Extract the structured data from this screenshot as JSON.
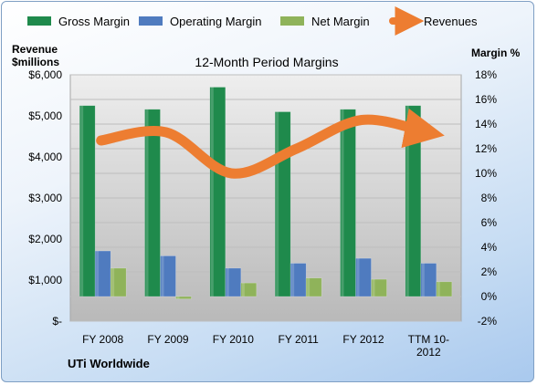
{
  "chart_data": {
    "type": "bar",
    "title": "12-Month Period Margins",
    "company": "UTi Worldwide",
    "ylabel_left": [
      "Revenue",
      "$millions"
    ],
    "ylabel_right": "Margin %",
    "categories": [
      [
        "FY 2008"
      ],
      [
        "FY 2009"
      ],
      [
        "FY 2010"
      ],
      [
        "FY 2011"
      ],
      [
        "FY 2012"
      ],
      [
        "TTM 10-",
        "2012"
      ]
    ],
    "y_left_ticks": [
      "$-",
      "$1,000",
      "$2,000",
      "$3,000",
      "$4,000",
      "$5,000",
      "$6,000"
    ],
    "y_left_range": [
      0,
      6000
    ],
    "y_right_ticks": [
      "-2%",
      "0%",
      "2%",
      "4%",
      "6%",
      "8%",
      "10%",
      "12%",
      "14%",
      "16%",
      "18%"
    ],
    "y_right_range": [
      -2,
      18
    ],
    "grid": "horizontal",
    "legend_position": "top",
    "series": [
      {
        "name": "Gross Margin",
        "axis": "right",
        "type": "bar",
        "color": "#1f8a4c",
        "values": [
          15.5,
          15.2,
          17.0,
          15.0,
          15.2,
          15.5
        ]
      },
      {
        "name": "Operating Margin",
        "axis": "right",
        "type": "bar",
        "color": "#4f7bbf",
        "values": [
          3.7,
          3.3,
          2.3,
          2.7,
          3.1,
          2.7
        ]
      },
      {
        "name": "Net Margin",
        "axis": "right",
        "type": "bar",
        "color": "#8fb35a",
        "values": [
          2.3,
          -0.2,
          1.1,
          1.5,
          1.4,
          1.2
        ]
      },
      {
        "name": "Revenues",
        "axis": "left",
        "type": "line",
        "color": "#ed7d31",
        "values": [
          4400,
          4600,
          3600,
          4200,
          4900,
          4600
        ]
      }
    ]
  }
}
